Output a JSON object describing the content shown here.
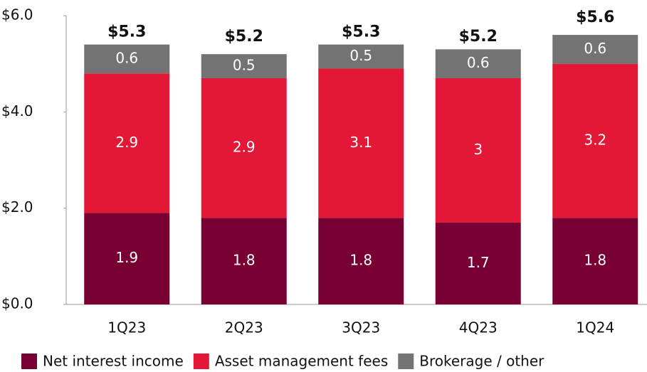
{
  "chart_data": {
    "type": "stacked_bar",
    "categories": [
      "1Q23",
      "2Q23",
      "3Q23",
      "4Q23",
      "1Q24"
    ],
    "series": [
      {
        "name": "Net interest income",
        "color": "#780032",
        "values": [
          1.9,
          1.8,
          1.8,
          1.7,
          1.8
        ]
      },
      {
        "name": "Asset management fees",
        "color": "#e31837",
        "values": [
          2.9,
          2.9,
          3.1,
          3.0,
          3.2
        ]
      },
      {
        "name": "Brokerage / other",
        "color": "#737373",
        "values": [
          0.6,
          0.5,
          0.5,
          0.6,
          0.6
        ]
      }
    ],
    "totals": {
      "values": [
        5.3,
        5.2,
        5.3,
        5.2,
        5.6
      ],
      "value_labels": [
        "$5.3",
        "$5.2",
        "$5.3",
        "$5.2",
        "$5.6"
      ]
    },
    "ylim": [
      0,
      6
    ],
    "yticks": [
      {
        "value": 0,
        "label": "$0.0"
      },
      {
        "value": 2,
        "label": "$2.0"
      },
      {
        "value": 4,
        "label": "$4.0"
      },
      {
        "value": 6,
        "label": "$6.0"
      }
    ],
    "legend": "bottom"
  }
}
